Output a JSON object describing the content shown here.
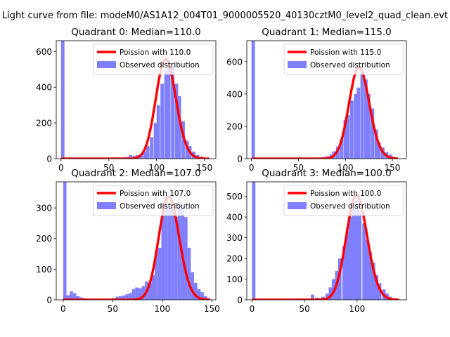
{
  "suptitle": "Light curve from file: modeM0/AS1A12_004T01_9000005520_40130cztM0_level2_quad_clean.evt",
  "legend_labels": {
    "fit_prefix": "Poission with ",
    "observed": "Observed distribution"
  },
  "colors": {
    "fit": "#ff0000",
    "bars": "#8080ff"
  },
  "chart_data": [
    {
      "type": "bar",
      "title": "Quadrant 0: Median=110.0",
      "median": 110.0,
      "fit_label": "110.0",
      "xlim": [
        -5,
        162
      ],
      "ylim": [
        0,
        660
      ],
      "xticks": [
        0,
        50,
        100,
        150
      ],
      "yticks": [
        0,
        200,
        400,
        600
      ],
      "bins": [
        [
          0,
          660
        ],
        [
          56,
          3
        ],
        [
          60,
          6
        ],
        [
          64,
          8
        ],
        [
          67,
          10
        ],
        [
          71,
          20
        ],
        [
          75,
          15
        ],
        [
          78,
          20
        ],
        [
          82,
          25
        ],
        [
          86,
          40
        ],
        [
          89,
          70
        ],
        [
          93,
          120
        ],
        [
          97,
          200
        ],
        [
          100,
          300
        ],
        [
          104,
          420
        ],
        [
          108,
          500
        ],
        [
          111,
          530
        ],
        [
          115,
          520
        ],
        [
          119,
          420
        ],
        [
          122,
          350
        ],
        [
          126,
          210
        ],
        [
          130,
          100
        ],
        [
          133,
          70
        ],
        [
          137,
          40
        ],
        [
          141,
          20
        ],
        [
          145,
          12
        ],
        [
          148,
          6
        ],
        [
          152,
          3
        ]
      ]
    },
    {
      "type": "bar",
      "title": "Quadrant 1: Median=115.0",
      "median": 115.0,
      "fit_label": "115.0",
      "xlim": [
        -5,
        165
      ],
      "ylim": [
        0,
        730
      ],
      "xticks": [
        0,
        50,
        100,
        150
      ],
      "yticks": [
        0,
        200,
        400,
        600
      ],
      "bins": [
        [
          0,
          730
        ],
        [
          68,
          5
        ],
        [
          72,
          8
        ],
        [
          75,
          10
        ],
        [
          79,
          15
        ],
        [
          83,
          25
        ],
        [
          86,
          45
        ],
        [
          90,
          75
        ],
        [
          94,
          120
        ],
        [
          98,
          240
        ],
        [
          101,
          270
        ],
        [
          105,
          360
        ],
        [
          109,
          400
        ],
        [
          112,
          440
        ],
        [
          116,
          540
        ],
        [
          120,
          490
        ],
        [
          123,
          400
        ],
        [
          127,
          310
        ],
        [
          131,
          180
        ],
        [
          134,
          100
        ],
        [
          138,
          70
        ],
        [
          142,
          40
        ],
        [
          146,
          25
        ],
        [
          149,
          12
        ],
        [
          153,
          6
        ]
      ]
    },
    {
      "type": "bar",
      "title": "Quadrant 2: Median=107.0",
      "median": 107.0,
      "fit_label": "107.0",
      "xlim": [
        -7,
        154
      ],
      "ylim": [
        0,
        385
      ],
      "xticks": [
        0,
        50,
        100,
        150
      ],
      "yticks": [
        0,
        100,
        200,
        300
      ],
      "bins": [
        [
          0,
          385
        ],
        [
          3.3,
          15
        ],
        [
          6.6,
          28
        ],
        [
          9.9,
          22
        ],
        [
          13.2,
          12
        ],
        [
          16.5,
          8
        ],
        [
          19.8,
          5
        ],
        [
          23.1,
          3
        ],
        [
          49.5,
          5
        ],
        [
          52.8,
          10
        ],
        [
          56.1,
          12
        ],
        [
          59.4,
          14
        ],
        [
          62.7,
          18
        ],
        [
          66,
          22
        ],
        [
          69.3,
          35
        ],
        [
          72.6,
          40
        ],
        [
          75.9,
          38
        ],
        [
          79.2,
          45
        ],
        [
          82.5,
          60
        ],
        [
          85.8,
          55
        ],
        [
          89.1,
          80
        ],
        [
          92.4,
          160
        ],
        [
          95.7,
          170
        ],
        [
          99,
          290
        ],
        [
          102.3,
          310
        ],
        [
          105.6,
          300
        ],
        [
          108.9,
          305
        ],
        [
          112.2,
          270
        ],
        [
          115.5,
          320
        ],
        [
          118.8,
          300
        ],
        [
          122.1,
          270
        ],
        [
          125.4,
          170
        ],
        [
          128.7,
          90
        ],
        [
          132,
          55
        ],
        [
          135.3,
          35
        ],
        [
          138.6,
          25
        ],
        [
          141.9,
          12
        ],
        [
          145.2,
          5
        ]
      ]
    },
    {
      "type": "bar",
      "title": "Quadrant 3: Median=100.0",
      "median": 100.0,
      "fit_label": "100.0",
      "xlim": [
        -5,
        147
      ],
      "ylim": [
        0,
        570
      ],
      "xticks": [
        0,
        50,
        100
      ],
      "yticks": [
        0,
        100,
        200,
        300,
        400,
        500
      ],
      "bins": [
        [
          0,
          570
        ],
        [
          56,
          25
        ],
        [
          60,
          10
        ],
        [
          63,
          8
        ],
        [
          66,
          15
        ],
        [
          70,
          30
        ],
        [
          73,
          60
        ],
        [
          76,
          100
        ],
        [
          79,
          140
        ],
        [
          82,
          200
        ],
        [
          86,
          260
        ],
        [
          89,
          330
        ],
        [
          92,
          400
        ],
        [
          95,
          440
        ],
        [
          98,
          480
        ],
        [
          101,
          430
        ],
        [
          105,
          370
        ],
        [
          108,
          290
        ],
        [
          111,
          230
        ],
        [
          114,
          180
        ],
        [
          117,
          120
        ],
        [
          120,
          80
        ],
        [
          124,
          50
        ],
        [
          127,
          30
        ],
        [
          130,
          15
        ],
        [
          133,
          8
        ],
        [
          137,
          4
        ]
      ]
    }
  ]
}
